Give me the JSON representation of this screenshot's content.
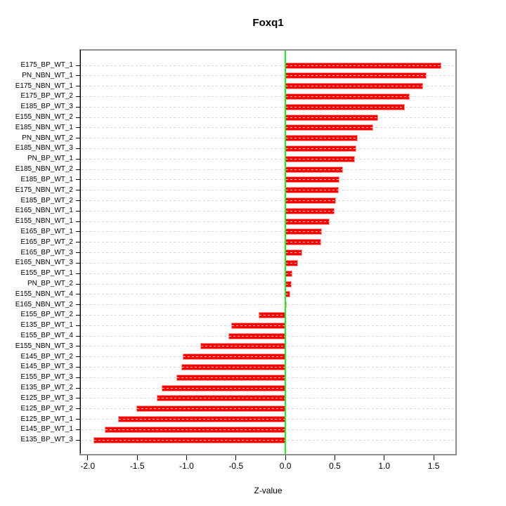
{
  "title": "Foxq1",
  "xlabel": "Z-value",
  "chart_data": {
    "type": "bar",
    "orientation": "horizontal",
    "title": "Foxq1",
    "xlabel": "Z-value",
    "ylabel": "",
    "xlim": [
      -2.07,
      1.72
    ],
    "grid": true,
    "categories": [
      "E175_BP_WT_1",
      "PN_NBN_WT_1",
      "E175_NBN_WT_1",
      "E175_BP_WT_2",
      "E185_BP_WT_3",
      "E155_NBN_WT_2",
      "E185_NBN_WT_1",
      "PN_NBN_WT_2",
      "E185_NBN_WT_3",
      "PN_BP_WT_1",
      "E185_NBN_WT_2",
      "E185_BP_WT_1",
      "E175_NBN_WT_2",
      "E185_BP_WT_2",
      "E165_NBN_WT_1",
      "E155_NBN_WT_1",
      "E165_BP_WT_1",
      "E165_BP_WT_2",
      "E165_BP_WT_3",
      "E165_NBN_WT_3",
      "E155_BP_WT_1",
      "PN_BP_WT_2",
      "E155_NBN_WT_4",
      "E165_NBN_WT_2",
      "E155_BP_WT_2",
      "E135_BP_WT_1",
      "E155_BP_WT_4",
      "E155_NBN_WT_3",
      "E145_BP_WT_2",
      "E145_BP_WT_3",
      "E155_BP_WT_3",
      "E135_BP_WT_2",
      "E125_BP_WT_3",
      "E125_BP_WT_2",
      "E125_BP_WT_1",
      "E145_BP_WT_1",
      "E135_BP_WT_3"
    ],
    "values": [
      1.58,
      1.43,
      1.39,
      1.26,
      1.21,
      0.94,
      0.89,
      0.73,
      0.72,
      0.7,
      0.58,
      0.55,
      0.54,
      0.51,
      0.5,
      0.45,
      0.37,
      0.36,
      0.17,
      0.13,
      0.07,
      0.06,
      0.05,
      0.01,
      -0.27,
      -0.55,
      -0.58,
      -0.86,
      -1.04,
      -1.05,
      -1.1,
      -1.25,
      -1.3,
      -1.51,
      -1.69,
      -1.83,
      -1.94
    ],
    "x_tick_labels": [
      "-2.0",
      "-1.5",
      "-1.0",
      "-0.5",
      "0.0",
      "0.5",
      "1.0",
      "1.5"
    ],
    "x_tick_values": [
      -2.0,
      -1.5,
      -1.0,
      -0.5,
      0.0,
      0.5,
      1.0,
      1.5
    ],
    "colors": {
      "bar_fill": "#FF0000",
      "bar_border": "#FF9C9C",
      "zero_line": "#22EE22",
      "grid_line": "#D9D9D9",
      "box_border": "#8F8F8F",
      "axis_text": "#000000"
    },
    "zero_reference_line": 0.0
  }
}
